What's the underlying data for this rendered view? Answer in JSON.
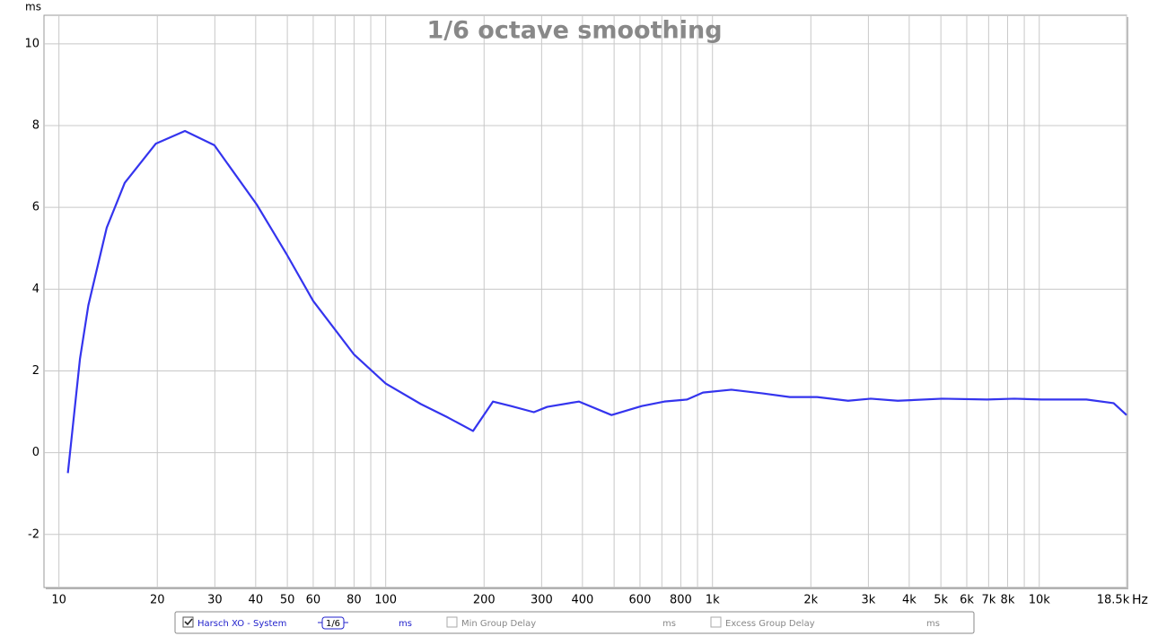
{
  "chart_data": {
    "type": "line",
    "title": "1/6 octave smoothing",
    "y_label": "ms",
    "x_label": "Hz",
    "xscale": "log",
    "xlim": [
      9,
      18500
    ],
    "ylim": [
      -3.3,
      10.7
    ],
    "grid": true,
    "xticks": [
      10,
      20,
      30,
      40,
      50,
      60,
      80,
      100,
      200,
      300,
      400,
      600,
      800,
      {
        "value": 1000,
        "label": "1k"
      },
      {
        "value": 2000,
        "label": "2k"
      },
      {
        "value": 3000,
        "label": "3k"
      },
      {
        "value": 4000,
        "label": "4k"
      },
      {
        "value": 5000,
        "label": "5k"
      },
      {
        "value": 6000,
        "label": "6k"
      },
      {
        "value": 7000,
        "label": "7k"
      },
      {
        "value": 8000,
        "label": "8k"
      },
      {
        "value": 10000,
        "label": "10k"
      },
      {
        "value": 18500,
        "label": "18.5k"
      }
    ],
    "xminor": [
      70,
      90,
      500,
      700,
      900,
      9000
    ],
    "yticks": [
      -2,
      0,
      2,
      4,
      6,
      8,
      10
    ],
    "x": [
      10.65,
      11.6,
      12.3,
      14.0,
      15.9,
      19.8,
      24.3,
      29.9,
      40.3,
      49.7,
      60,
      80,
      100,
      128,
      155,
      185,
      213,
      242,
      284,
      312,
      390,
      491,
      607,
      712,
      836,
      935,
      1142,
      1426,
      1725,
      2090,
      2600,
      3050,
      3690,
      5050,
      6920,
      8390,
      10170,
      13940,
      16890,
      18500
    ],
    "series": [
      {
        "name": "Harsch XO - System",
        "color": "#3434ee",
        "unit": "ms",
        "smoothing": "1/6",
        "values": [
          -0.5,
          2.3,
          3.6,
          5.5,
          6.6,
          7.56,
          7.87,
          7.52,
          6.07,
          4.86,
          3.71,
          2.4,
          1.69,
          1.19,
          0.86,
          0.53,
          1.25,
          1.14,
          0.99,
          1.12,
          1.25,
          0.92,
          1.14,
          1.25,
          1.3,
          1.47,
          1.54,
          1.45,
          1.36,
          1.36,
          1.27,
          1.32,
          1.27,
          1.32,
          1.3,
          1.32,
          1.3,
          1.3,
          1.21,
          0.92
        ]
      }
    ],
    "inactive_traces": [
      {
        "name": "Min Group Delay",
        "unit": "ms"
      },
      {
        "name": "Excess Group Delay",
        "unit": "ms"
      }
    ]
  }
}
